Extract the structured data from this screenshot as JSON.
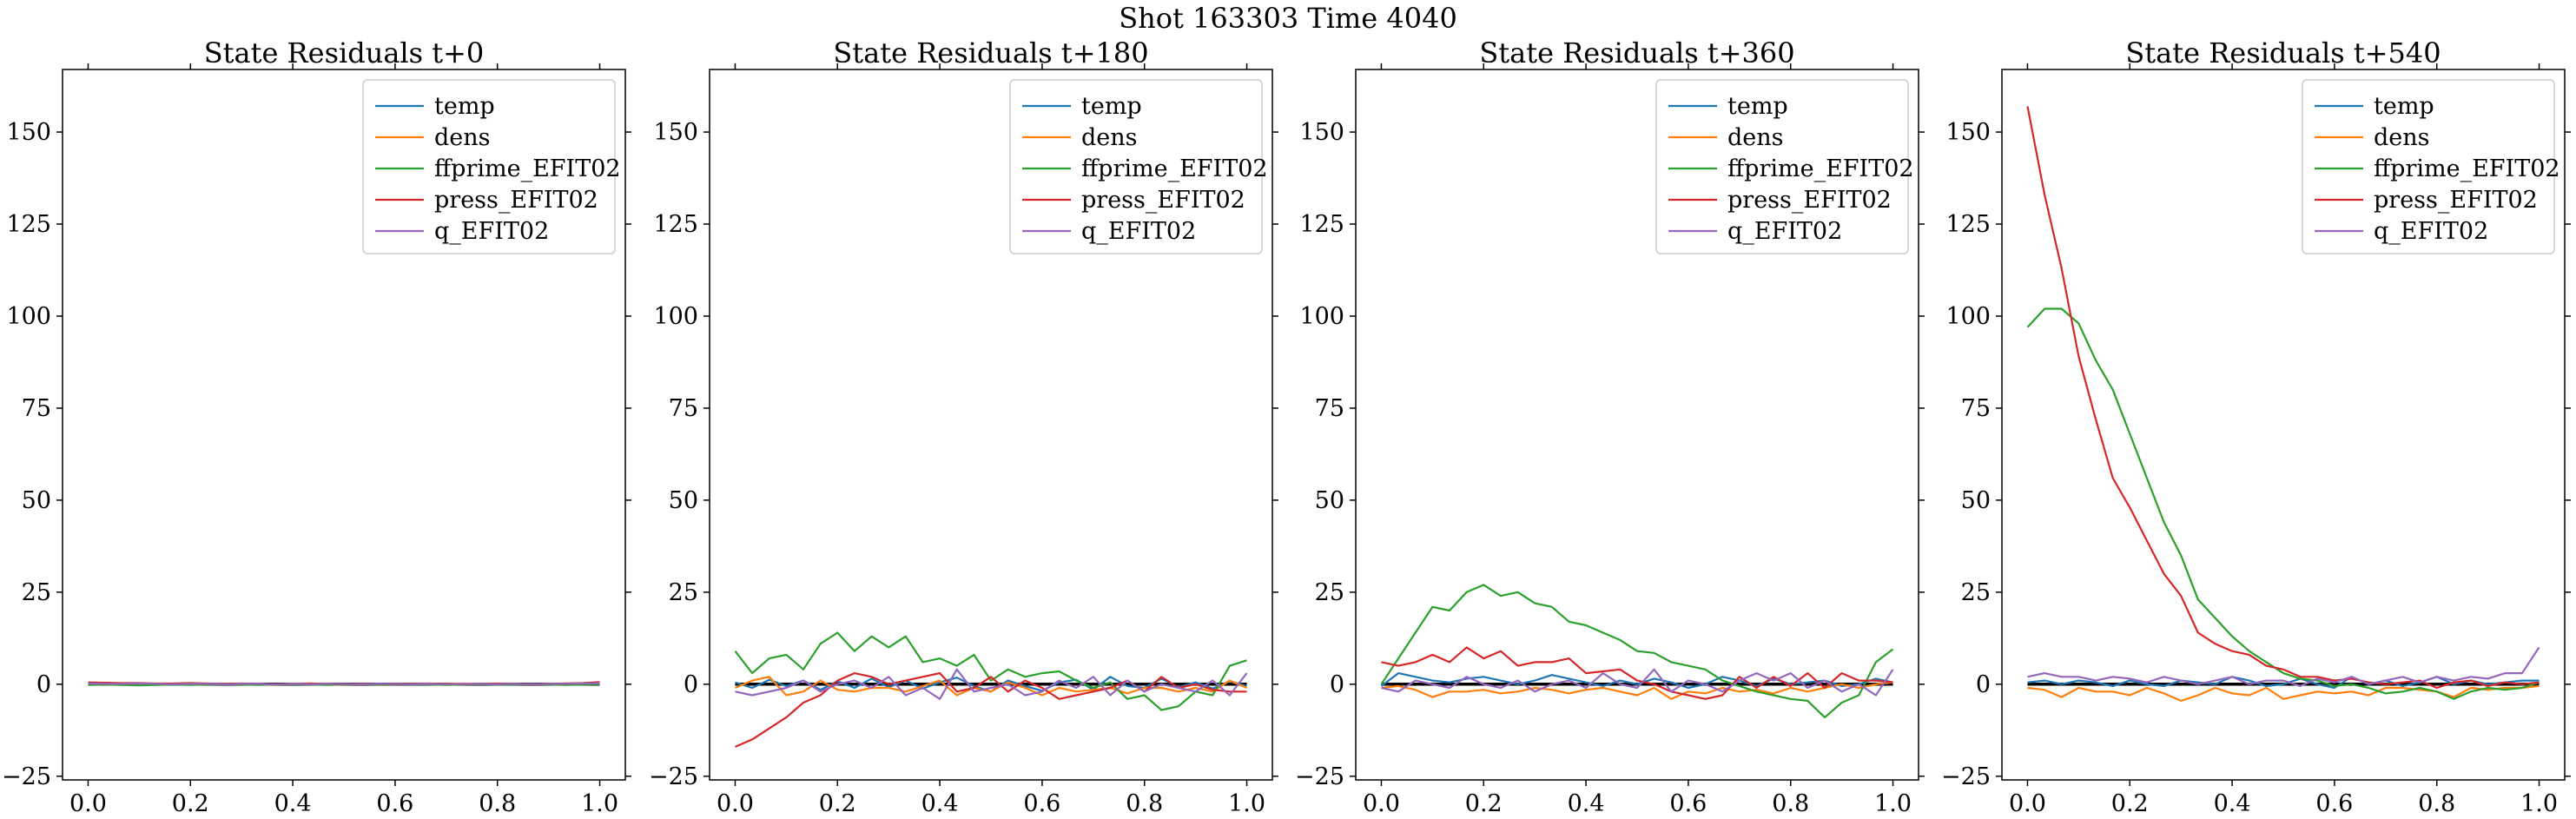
{
  "suptitle": "Shot 163303   Time 4040",
  "colors": {
    "temp": "#1f77b4",
    "dens": "#ff7f0e",
    "ffprime_EFIT02": "#2ca02c",
    "press_EFIT02": "#d62728",
    "q_EFIT02": "#9467bd",
    "zero_line": "#000000"
  },
  "chart_data": [
    {
      "type": "line",
      "title": "State Residuals t+0",
      "xlabel": "",
      "ylabel": "",
      "xlim": [
        -0.05,
        1.05
      ],
      "ylim": [
        -26,
        167
      ],
      "xticks": [
        0.0,
        0.2,
        0.4,
        0.6,
        0.8,
        1.0
      ],
      "xtick_labels": [
        "0.0",
        "0.2",
        "0.4",
        "0.6",
        "0.8",
        "1.0"
      ],
      "yticks": [
        -25,
        0,
        25,
        50,
        75,
        100,
        125,
        150
      ],
      "ytick_labels": [
        "−25",
        "0",
        "25",
        "50",
        "75",
        "100",
        "125",
        "150"
      ],
      "legend_position": "top-right",
      "x": [
        0.0,
        0.0333,
        0.0667,
        0.1,
        0.1333,
        0.1667,
        0.2,
        0.2333,
        0.2667,
        0.3,
        0.3333,
        0.3667,
        0.4,
        0.4333,
        0.4667,
        0.5,
        0.5333,
        0.5667,
        0.6,
        0.6333,
        0.6667,
        0.7,
        0.7333,
        0.7667,
        0.8,
        0.8333,
        0.8667,
        0.9,
        0.9333,
        0.9667,
        1.0
      ],
      "series": [
        {
          "name": "temp",
          "values": [
            0.1,
            0.0,
            -0.1,
            0.0,
            0.1,
            0.0,
            -0.1,
            0.0,
            0.1,
            0.0,
            -0.1,
            0.0,
            0.1,
            0.0,
            0.0,
            -0.1,
            0.0,
            0.1,
            0.0,
            -0.1,
            0.0,
            0.1,
            0.0,
            0.0,
            -0.1,
            0.0,
            0.1,
            0.0,
            0.0,
            -0.1,
            0.0
          ]
        },
        {
          "name": "dens",
          "values": [
            0.3,
            0.2,
            0.1,
            0.2,
            0.1,
            0.0,
            0.1,
            0.2,
            0.1,
            0.0,
            0.1,
            0.0,
            0.1,
            0.2,
            0.1,
            0.0,
            0.1,
            0.0,
            0.1,
            0.1,
            0.0,
            0.1,
            0.2,
            0.1,
            0.0,
            0.1,
            0.0,
            0.1,
            0.2,
            0.1,
            0.2
          ]
        },
        {
          "name": "ffprime_EFIT02",
          "values": [
            -0.2,
            -0.1,
            -0.2,
            -0.3,
            -0.2,
            -0.1,
            -0.2,
            -0.1,
            0.0,
            -0.1,
            -0.2,
            -0.1,
            0.0,
            -0.1,
            -0.2,
            -0.1,
            0.0,
            -0.1,
            -0.1,
            0.0,
            -0.1,
            -0.2,
            -0.1,
            0.0,
            -0.1,
            -0.1,
            0.0,
            -0.1,
            -0.2,
            -0.1,
            0.0
          ]
        },
        {
          "name": "press_EFIT02",
          "values": [
            0.5,
            0.4,
            0.3,
            0.3,
            0.2,
            0.2,
            0.3,
            0.2,
            0.1,
            0.2,
            0.1,
            0.0,
            0.1,
            0.2,
            0.1,
            0.0,
            0.1,
            0.1,
            0.0,
            0.1,
            0.2,
            0.1,
            0.0,
            0.1,
            0.2,
            0.1,
            0.0,
            0.1,
            0.2,
            0.3,
            0.6
          ]
        },
        {
          "name": "q_EFIT02",
          "values": [
            0.2,
            0.1,
            0.1,
            0.2,
            0.1,
            0.0,
            0.1,
            0.1,
            0.0,
            0.1,
            0.1,
            0.0,
            0.1,
            0.0,
            0.1,
            0.1,
            0.0,
            0.1,
            0.1,
            0.0,
            0.1,
            0.0,
            0.1,
            0.1,
            0.0,
            0.1,
            0.0,
            0.1,
            0.1,
            0.2,
            0.3
          ]
        }
      ]
    },
    {
      "type": "line",
      "title": "State Residuals t+180",
      "xlabel": "",
      "ylabel": "",
      "xlim": [
        -0.05,
        1.05
      ],
      "ylim": [
        -26,
        167
      ],
      "xticks": [
        0.0,
        0.2,
        0.4,
        0.6,
        0.8,
        1.0
      ],
      "xtick_labels": [
        "0.0",
        "0.2",
        "0.4",
        "0.6",
        "0.8",
        "1.0"
      ],
      "yticks": [
        -25,
        0,
        25,
        50,
        75,
        100,
        125,
        150
      ],
      "ytick_labels": [
        "−25",
        "0",
        "25",
        "50",
        "75",
        "100",
        "125",
        "150"
      ],
      "legend_position": "top-right",
      "x": [
        0.0,
        0.0333,
        0.0667,
        0.1,
        0.1333,
        0.1667,
        0.2,
        0.2333,
        0.2667,
        0.3,
        0.3333,
        0.3667,
        0.4,
        0.4333,
        0.4667,
        0.5,
        0.5333,
        0.5667,
        0.6,
        0.6333,
        0.6667,
        0.7,
        0.7333,
        0.7667,
        0.8,
        0.8333,
        0.8667,
        0.9,
        0.9333,
        0.9667,
        1.0
      ],
      "series": [
        {
          "name": "temp",
          "values": [
            0.5,
            -1.0,
            1.2,
            -0.5,
            1.0,
            -1.5,
            0.8,
            -1.0,
            1.5,
            -0.8,
            1.0,
            -1.2,
            0.5,
            1.8,
            -0.5,
            -2.0,
            1.0,
            -0.5,
            -1.8,
            0.5,
            1.2,
            -1.5,
            2.0,
            -0.5,
            -1.0,
            1.5,
            -0.8,
            0.5,
            -1.2,
            0.8,
            -0.5
          ]
        },
        {
          "name": "dens",
          "values": [
            -1.0,
            1.0,
            2.0,
            -3.0,
            -2.0,
            1.0,
            -1.5,
            -2.0,
            -1.0,
            -1.0,
            -2.0,
            -0.5,
            1.0,
            -3.0,
            -1.0,
            -2.0,
            0.5,
            -1.0,
            -3.0,
            -1.0,
            -2.0,
            -1.5,
            -1.0,
            -2.5,
            -1.0,
            -1.0,
            -2.0,
            -1.0,
            -2.0,
            1.0,
            -1.0
          ]
        },
        {
          "name": "ffprime_EFIT02",
          "values": [
            9.0,
            3.0,
            7.0,
            8.0,
            4.0,
            11.0,
            14.0,
            9.0,
            13.0,
            10.0,
            13.0,
            6.0,
            7.0,
            5.0,
            8.0,
            1.0,
            4.0,
            2.0,
            3.0,
            3.5,
            1.0,
            -1.0,
            0.5,
            -4.0,
            -3.0,
            -7.0,
            -6.0,
            -2.0,
            -3.0,
            5.0,
            6.5
          ]
        },
        {
          "name": "press_EFIT02",
          "values": [
            -17.0,
            -15.0,
            -12.0,
            -9.0,
            -5.0,
            -3.0,
            1.0,
            3.0,
            2.0,
            0.0,
            1.0,
            2.0,
            3.0,
            -2.0,
            -1.0,
            2.0,
            -2.0,
            1.0,
            -1.0,
            -4.0,
            -3.0,
            -2.0,
            -1.0,
            1.0,
            -2.0,
            2.0,
            -1.0,
            0.0,
            -1.5,
            -2.0,
            -2.0
          ]
        },
        {
          "name": "q_EFIT02",
          "values": [
            -2.0,
            -3.0,
            -2.0,
            -1.0,
            1.0,
            -2.0,
            0.0,
            1.0,
            -1.0,
            2.0,
            -3.0,
            -1.0,
            -4.0,
            4.0,
            -2.0,
            -1.0,
            0.0,
            -3.0,
            -2.0,
            1.0,
            -1.0,
            2.0,
            -3.0,
            1.0,
            -2.0,
            0.0,
            -1.0,
            -2.0,
            1.0,
            -3.0,
            3.0
          ]
        }
      ]
    },
    {
      "type": "line",
      "title": "State Residuals t+360",
      "xlabel": "",
      "ylabel": "",
      "xlim": [
        -0.05,
        1.05
      ],
      "ylim": [
        -26,
        167
      ],
      "xticks": [
        0.0,
        0.2,
        0.4,
        0.6,
        0.8,
        1.0
      ],
      "xtick_labels": [
        "0.0",
        "0.2",
        "0.4",
        "0.6",
        "0.8",
        "1.0"
      ],
      "yticks": [
        -25,
        0,
        25,
        50,
        75,
        100,
        125,
        150
      ],
      "ytick_labels": [
        "−25",
        "0",
        "25",
        "50",
        "75",
        "100",
        "125",
        "150"
      ],
      "legend_position": "top-right",
      "x": [
        0.0,
        0.0333,
        0.0667,
        0.1,
        0.1333,
        0.1667,
        0.2,
        0.2333,
        0.2667,
        0.3,
        0.3333,
        0.3667,
        0.4,
        0.4333,
        0.4667,
        0.5,
        0.5333,
        0.5667,
        0.6,
        0.6333,
        0.6667,
        0.7,
        0.7333,
        0.7667,
        0.8,
        0.8333,
        0.8667,
        0.9,
        0.9333,
        0.9667,
        1.0
      ],
      "series": [
        {
          "name": "temp",
          "values": [
            -0.5,
            3.0,
            2.0,
            1.0,
            0.5,
            1.5,
            2.0,
            1.0,
            0.0,
            1.0,
            2.5,
            1.5,
            0.5,
            -0.5,
            1.0,
            0.0,
            1.5,
            0.5,
            -1.0,
            0.0,
            2.0,
            1.0,
            -0.5,
            1.5,
            0.0,
            0.5,
            1.0,
            -0.5,
            0.0,
            1.5,
            0.5
          ]
        },
        {
          "name": "dens",
          "values": [
            -1.0,
            -0.5,
            -1.5,
            -3.5,
            -2.0,
            -2.0,
            -1.5,
            -2.5,
            -2.0,
            -1.0,
            -1.5,
            -2.5,
            -1.5,
            -1.0,
            -2.0,
            -3.0,
            -1.0,
            -4.0,
            -2.0,
            -2.5,
            -1.0,
            -2.0,
            -1.5,
            -2.5,
            -1.0,
            -2.0,
            -1.0,
            0.0,
            -1.0,
            0.0,
            0.5
          ]
        },
        {
          "name": "ffprime_EFIT02",
          "values": [
            0.0,
            7.0,
            14.0,
            21.0,
            20.0,
            25.0,
            27.0,
            24.0,
            25.0,
            22.0,
            21.0,
            17.0,
            16.0,
            14.0,
            12.0,
            9.0,
            8.5,
            6.0,
            5.0,
            4.0,
            1.0,
            -0.5,
            -2.0,
            -3.0,
            -4.0,
            -4.5,
            -9.0,
            -5.0,
            -3.0,
            6.0,
            9.5
          ]
        },
        {
          "name": "press_EFIT02",
          "values": [
            6.0,
            5.0,
            6.0,
            8.0,
            6.0,
            10.0,
            7.0,
            9.0,
            5.0,
            6.0,
            6.0,
            7.0,
            3.0,
            3.5,
            4.0,
            1.0,
            0.0,
            -2.0,
            -3.0,
            -4.0,
            -3.0,
            2.0,
            -1.0,
            2.0,
            -0.5,
            3.0,
            -1.0,
            3.0,
            1.0,
            1.0,
            0.5
          ]
        },
        {
          "name": "q_EFIT02",
          "values": [
            -1.0,
            -2.0,
            1.0,
            0.0,
            -1.0,
            2.0,
            0.0,
            -1.0,
            1.0,
            -2.0,
            0.0,
            1.0,
            -1.0,
            3.0,
            0.0,
            -1.0,
            4.0,
            -2.0,
            1.0,
            0.0,
            -2.0,
            1.0,
            3.0,
            1.0,
            3.0,
            -1.0,
            1.0,
            -2.0,
            0.0,
            -3.0,
            4.0
          ]
        }
      ]
    },
    {
      "type": "line",
      "title": "State Residuals t+540",
      "xlabel": "",
      "ylabel": "",
      "xlim": [
        -0.05,
        1.05
      ],
      "ylim": [
        -26,
        167
      ],
      "xticks": [
        0.0,
        0.2,
        0.4,
        0.6,
        0.8,
        1.0
      ],
      "xtick_labels": [
        "0.0",
        "0.2",
        "0.4",
        "0.6",
        "0.8",
        "1.0"
      ],
      "yticks": [
        -25,
        0,
        25,
        50,
        75,
        100,
        125,
        150
      ],
      "ytick_labels": [
        "−25",
        "0",
        "25",
        "50",
        "75",
        "100",
        "125",
        "150"
      ],
      "legend_position": "top-right",
      "x": [
        0.0,
        0.0333,
        0.0667,
        0.1,
        0.1333,
        0.1667,
        0.2,
        0.2333,
        0.2667,
        0.3,
        0.3333,
        0.3667,
        0.4,
        0.4333,
        0.4667,
        0.5,
        0.5333,
        0.5667,
        0.6,
        0.6333,
        0.6667,
        0.7,
        0.7333,
        0.7667,
        0.8,
        0.8333,
        0.8667,
        0.9,
        0.9333,
        0.9667,
        1.0
      ],
      "series": [
        {
          "name": "temp",
          "values": [
            0.5,
            1.0,
            0.0,
            1.0,
            0.5,
            -0.5,
            1.0,
            0.0,
            -0.5,
            1.0,
            0.5,
            0.0,
            2.0,
            1.0,
            -0.5,
            0.0,
            1.5,
            0.0,
            -1.0,
            2.0,
            0.0,
            1.0,
            -0.5,
            0.5,
            2.0,
            0.0,
            1.0,
            0.0,
            0.5,
            1.0,
            1.0
          ]
        },
        {
          "name": "dens",
          "values": [
            -1.0,
            -1.5,
            -3.5,
            -1.0,
            -2.0,
            -2.0,
            -3.0,
            -1.0,
            -2.5,
            -4.5,
            -3.0,
            -1.0,
            -2.5,
            -3.0,
            -1.0,
            -4.0,
            -3.0,
            -2.0,
            -2.5,
            -2.0,
            -3.0,
            -1.0,
            -1.0,
            -1.5,
            -2.0,
            -3.5,
            -1.0,
            -1.5,
            -1.0,
            -1.0,
            -0.5
          ]
        },
        {
          "name": "ffprime_EFIT02",
          "values": [
            97.0,
            102.0,
            102.0,
            98.0,
            88.0,
            80.0,
            68.0,
            56.0,
            44.0,
            35.0,
            23.0,
            18.0,
            13.0,
            9.0,
            6.0,
            3.0,
            1.5,
            1.0,
            -0.5,
            0.0,
            -1.0,
            -2.5,
            -2.0,
            -1.0,
            -2.0,
            -4.0,
            -2.0,
            -1.0,
            -1.5,
            -1.0,
            0.5
          ]
        },
        {
          "name": "press_EFIT02",
          "values": [
            157.0,
            133.0,
            113.0,
            89.0,
            72.0,
            56.0,
            48.0,
            39.0,
            30.0,
            24.0,
            14.0,
            11.0,
            9.0,
            8.0,
            5.0,
            4.0,
            2.0,
            2.0,
            1.0,
            1.5,
            0.5,
            0.0,
            0.5,
            1.0,
            -1.0,
            0.5,
            1.0,
            -0.5,
            0.5,
            0.0,
            0.5
          ]
        },
        {
          "name": "q_EFIT02",
          "values": [
            2.0,
            3.0,
            2.0,
            2.0,
            1.0,
            2.0,
            1.5,
            0.5,
            2.0,
            1.0,
            0.0,
            1.0,
            2.0,
            0.0,
            1.0,
            1.0,
            -0.5,
            1.5,
            0.5,
            2.0,
            0.0,
            1.0,
            2.0,
            0.5,
            2.0,
            1.0,
            2.0,
            1.5,
            3.0,
            3.0,
            10.0
          ]
        }
      ]
    }
  ]
}
